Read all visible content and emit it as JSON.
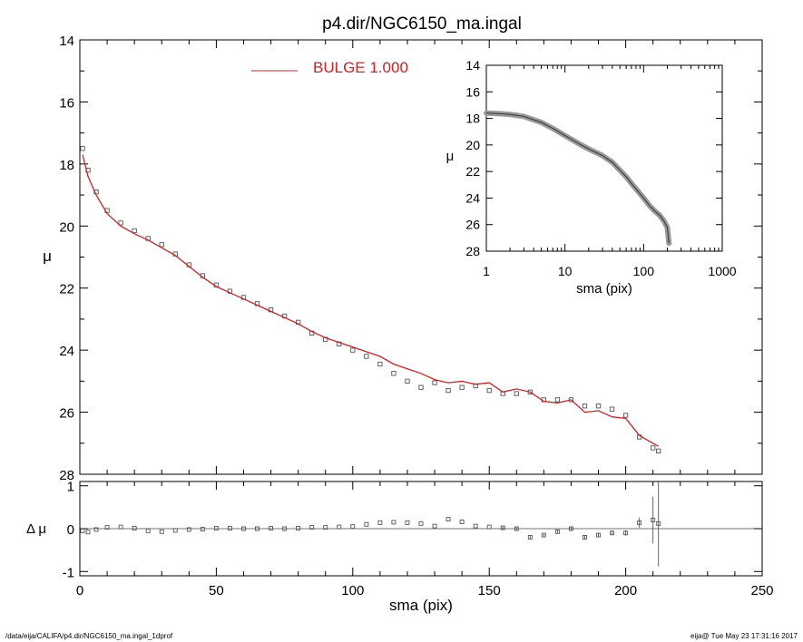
{
  "title": "p4.dir/NGC6150_ma.ingal",
  "footer_left": "/data/eija/CALIFA/p4.dir/NGC6150_ma.ingal_1dprof",
  "footer_right": "eija@  Tue May 23 17:31:16 2017",
  "colors": {
    "model": "#d42020",
    "data": "#555555",
    "inset_band": "#9a9a9a",
    "axes": "#000000"
  },
  "chart_data": [
    {
      "type": "scatter",
      "id": "main",
      "xlabel": "",
      "ylabel": "μ",
      "xlim": [
        0,
        250
      ],
      "ylim": [
        28,
        14
      ],
      "y_inverted": true,
      "x_ticks": [
        0,
        50,
        100,
        150,
        200,
        250
      ],
      "y_ticks": [
        14,
        16,
        18,
        20,
        22,
        24,
        26,
        28
      ],
      "legend": {
        "label": "BULGE  1.000",
        "placement": "top-center"
      },
      "series": [
        {
          "name": "BULGE  1.000",
          "kind": "line",
          "x": [
            1,
            3,
            6,
            10,
            15,
            20,
            25,
            30,
            35,
            40,
            45,
            50,
            55,
            60,
            65,
            70,
            75,
            80,
            85,
            90,
            95,
            100,
            105,
            110,
            115,
            120,
            125,
            130,
            135,
            140,
            145,
            150,
            155,
            160,
            165,
            170,
            175,
            180,
            185,
            190,
            195,
            200,
            205,
            210,
            212
          ],
          "y": [
            17.7,
            18.4,
            19.0,
            19.6,
            20.0,
            20.25,
            20.45,
            20.7,
            20.95,
            21.3,
            21.65,
            21.95,
            22.15,
            22.35,
            22.55,
            22.75,
            22.95,
            23.15,
            23.4,
            23.6,
            23.75,
            23.9,
            24.05,
            24.2,
            24.45,
            24.6,
            24.75,
            24.95,
            25.05,
            25.0,
            25.1,
            25.05,
            25.35,
            25.25,
            25.35,
            25.65,
            25.7,
            25.6,
            26.0,
            25.95,
            26.15,
            26.2,
            26.75,
            27.0,
            27.1
          ]
        },
        {
          "name": "",
          "kind": "points",
          "x": [
            1,
            3,
            6,
            10,
            15,
            20,
            25,
            30,
            35,
            40,
            45,
            50,
            55,
            60,
            65,
            70,
            75,
            80,
            85,
            90,
            95,
            100,
            105,
            110,
            115,
            120,
            125,
            130,
            135,
            140,
            145,
            150,
            155,
            160,
            165,
            170,
            175,
            180,
            185,
            190,
            195,
            200,
            205,
            210,
            212
          ],
          "y": [
            17.5,
            18.2,
            18.9,
            19.5,
            19.9,
            20.15,
            20.4,
            20.6,
            20.9,
            21.25,
            21.6,
            21.9,
            22.1,
            22.3,
            22.5,
            22.7,
            22.9,
            23.1,
            23.45,
            23.65,
            23.8,
            24.0,
            24.2,
            24.45,
            24.75,
            25.0,
            25.2,
            25.05,
            25.3,
            25.2,
            25.15,
            25.3,
            25.4,
            25.4,
            25.35,
            25.6,
            25.6,
            25.6,
            25.8,
            25.8,
            25.9,
            26.1,
            26.8,
            27.15,
            27.25
          ]
        }
      ]
    },
    {
      "type": "scatter",
      "id": "residual",
      "xlabel": "sma (pix)",
      "ylabel": "Δ μ",
      "xlim": [
        0,
        250
      ],
      "ylim": [
        -1.1,
        1.1
      ],
      "x_ticks": [
        0,
        50,
        100,
        150,
        200,
        250
      ],
      "y_ticks": [
        -1,
        0,
        1
      ],
      "series": [
        {
          "name": "",
          "x": [
            1,
            3,
            6,
            10,
            15,
            20,
            25,
            30,
            35,
            40,
            45,
            50,
            55,
            60,
            65,
            70,
            75,
            80,
            85,
            90,
            95,
            100,
            105,
            110,
            115,
            120,
            125,
            130,
            135,
            140,
            145,
            150,
            155,
            160,
            165,
            170,
            175,
            180,
            185,
            190,
            195,
            200,
            205,
            210,
            212
          ],
          "y": [
            -0.05,
            -0.08,
            -0.02,
            0.03,
            0.04,
            0.01,
            -0.05,
            -0.07,
            -0.04,
            -0.02,
            -0.01,
            0.01,
            0.01,
            0.0,
            0.0,
            0.01,
            0.0,
            0.01,
            0.03,
            0.03,
            0.04,
            0.05,
            0.1,
            0.14,
            0.15,
            0.14,
            0.12,
            0.06,
            0.22,
            0.16,
            0.06,
            0.04,
            0.02,
            0.0,
            -0.2,
            -0.15,
            -0.07,
            0.0,
            -0.2,
            -0.15,
            -0.1,
            -0.1,
            0.14,
            0.2,
            0.12
          ],
          "err": [
            0.005,
            0.005,
            0.005,
            0.005,
            0.005,
            0.005,
            0.005,
            0.005,
            0.005,
            0.005,
            0.005,
            0.005,
            0.005,
            0.005,
            0.005,
            0.005,
            0.005,
            0.01,
            0.01,
            0.01,
            0.01,
            0.01,
            0.01,
            0.01,
            0.01,
            0.01,
            0.02,
            0.02,
            0.02,
            0.02,
            0.02,
            0.02,
            0.03,
            0.03,
            0.03,
            0.03,
            0.04,
            0.04,
            0.05,
            0.05,
            0.05,
            0.06,
            0.12,
            0.55,
            1.0
          ]
        }
      ]
    },
    {
      "type": "line",
      "id": "inset",
      "xlabel": "sma (pix)",
      "ylabel": "μ",
      "x_scale": "log",
      "xlim": [
        1,
        1000
      ],
      "ylim": [
        28,
        14
      ],
      "y_inverted": true,
      "x_ticks": [
        1,
        10,
        100,
        1000
      ],
      "y_ticks": [
        14,
        16,
        18,
        20,
        22,
        24,
        26,
        28
      ],
      "series": [
        {
          "name": "",
          "x": [
            1,
            1.5,
            2,
            3,
            5,
            7,
            10,
            15,
            20,
            30,
            40,
            50,
            60,
            70,
            80,
            100,
            120,
            140,
            160,
            180,
            200,
            210
          ],
          "y": [
            17.6,
            17.65,
            17.7,
            17.85,
            18.3,
            18.75,
            19.3,
            19.9,
            20.3,
            20.8,
            21.3,
            21.9,
            22.4,
            22.9,
            23.3,
            24.0,
            24.6,
            25.0,
            25.3,
            25.7,
            26.2,
            27.4
          ]
        }
      ]
    }
  ]
}
